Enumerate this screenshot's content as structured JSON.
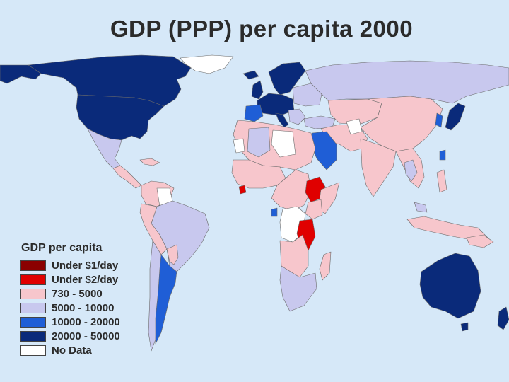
{
  "title": "GDP (PPP) per capita 2000",
  "legend": {
    "title": "GDP per capita",
    "items": [
      {
        "label": "Under $1/day",
        "color": "#8b0000"
      },
      {
        "label": "Under $2/day",
        "color": "#e00000"
      },
      {
        "label": "730 - 5000",
        "color": "#f7c6cc"
      },
      {
        "label": "5000 - 10000",
        "color": "#c8c8ee"
      },
      {
        "label": "10000 - 20000",
        "color": "#1f5ed6"
      },
      {
        "label": "20000 - 50000",
        "color": "#0a2a7a"
      },
      {
        "label": "No Data",
        "color": "#ffffff"
      }
    ]
  },
  "colors": {
    "ocean": "#d6e8f8",
    "border": "#5a5a5a"
  }
}
